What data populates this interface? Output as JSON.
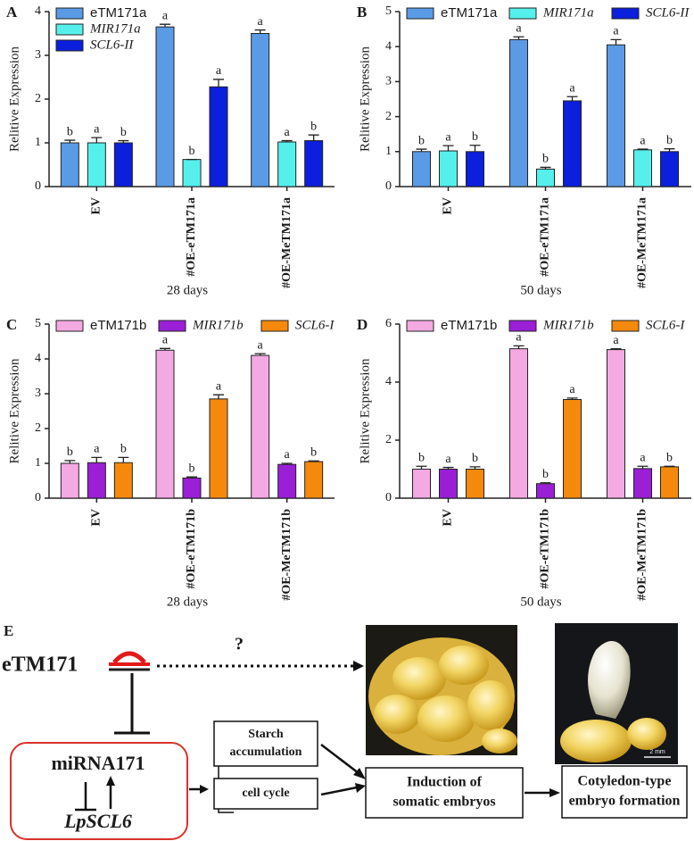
{
  "chart_data": [
    {
      "type": "bar",
      "panel": "A",
      "ylabel": "Relitive Expression",
      "xlabel": "28 days",
      "categories": [
        "EV",
        "#OE-eTM171a",
        "#OE-MeTM171a"
      ],
      "ylim": [
        0,
        4
      ],
      "yticks": [
        0,
        1,
        2,
        3,
        4
      ],
      "series": [
        {
          "name": "eTM171a",
          "color": "#5b9be6",
          "values": [
            1.0,
            3.65,
            3.5
          ],
          "errors": [
            0.06,
            0.06,
            0.08
          ],
          "letters": [
            "b",
            "a",
            "a"
          ]
        },
        {
          "name": "MIR171a",
          "color": "#55f0ec",
          "values": [
            1.0,
            0.62,
            1.02
          ],
          "errors": [
            0.12,
            0,
            0.03
          ],
          "letters": [
            "a",
            "b",
            "a"
          ]
        },
        {
          "name": "SCL6-II",
          "color": "#0b1fdc",
          "values": [
            1.0,
            2.28,
            1.05
          ],
          "errors": [
            0.05,
            0.17,
            0.13
          ],
          "letters": [
            "b",
            "a",
            "b"
          ]
        }
      ]
    },
    {
      "type": "bar",
      "panel": "B",
      "ylabel": "Relitive Expression",
      "xlabel": "50 days",
      "categories": [
        "EV",
        "#OE-eTM171a",
        "#OE-MeTM171a"
      ],
      "ylim": [
        0,
        5
      ],
      "yticks": [
        0,
        1,
        2,
        3,
        4,
        5
      ],
      "series": [
        {
          "name": "eTM171a",
          "color": "#5b9be6",
          "values": [
            1.0,
            4.2,
            4.05
          ],
          "errors": [
            0.07,
            0.08,
            0.15
          ],
          "letters": [
            "b",
            "a",
            "a"
          ]
        },
        {
          "name": "MIR171a",
          "color": "#55f0ec",
          "values": [
            1.02,
            0.5,
            1.05
          ],
          "errors": [
            0.15,
            0.05,
            0.02
          ],
          "letters": [
            "a",
            "b",
            "a"
          ]
        },
        {
          "name": "SCL6-II",
          "color": "#0b1fdc",
          "values": [
            1.0,
            2.45,
            1.0
          ],
          "errors": [
            0.18,
            0.12,
            0.08
          ],
          "letters": [
            "b",
            "a",
            "b"
          ]
        }
      ]
    },
    {
      "type": "bar",
      "panel": "C",
      "ylabel": "Relitive Expression",
      "xlabel": "28 days",
      "categories": [
        "EV",
        "#OE-eTM171b",
        "#OE-MeTM171b"
      ],
      "ylim": [
        0,
        5
      ],
      "yticks": [
        0,
        1,
        2,
        3,
        4,
        5
      ],
      "series": [
        {
          "name": "eTM171b",
          "color": "#f4a9e2",
          "values": [
            1.0,
            4.25,
            4.1
          ],
          "errors": [
            0.08,
            0.05,
            0.05
          ],
          "letters": [
            "b",
            "a",
            "a"
          ]
        },
        {
          "name": "MIR171b",
          "color": "#9a1fd6",
          "values": [
            1.02,
            0.58,
            0.97
          ],
          "errors": [
            0.15,
            0.03,
            0.03
          ],
          "letters": [
            "a",
            "b",
            "a"
          ]
        },
        {
          "name": "SCL6-I",
          "color": "#f5890c",
          "values": [
            1.02,
            2.85,
            1.05
          ],
          "errors": [
            0.15,
            0.12,
            0.02
          ],
          "letters": [
            "b",
            "a",
            "b"
          ]
        }
      ]
    },
    {
      "type": "bar",
      "panel": "D",
      "ylabel": "Relitive Expression",
      "xlabel": "50 days",
      "categories": [
        "EV",
        "#OE-eTM171b",
        "#OE-MeTM171b"
      ],
      "ylim": [
        0,
        6
      ],
      "yticks": [
        0,
        2,
        4,
        6
      ],
      "series": [
        {
          "name": "eTM171b",
          "color": "#f4a9e2",
          "values": [
            1.0,
            5.15,
            5.12
          ],
          "errors": [
            0.1,
            0.1,
            0.03
          ],
          "letters": [
            "b",
            "a",
            "a"
          ]
        },
        {
          "name": "MIR171b",
          "color": "#9a1fd6",
          "values": [
            1.0,
            0.5,
            1.02
          ],
          "errors": [
            0.06,
            0.03,
            0.08
          ],
          "letters": [
            "a",
            "b",
            "a"
          ]
        },
        {
          "name": "SCL6-I",
          "color": "#f5890c",
          "values": [
            1.0,
            3.4,
            1.08
          ],
          "errors": [
            0.08,
            0.05,
            0.02
          ],
          "letters": [
            "b",
            "a",
            "b"
          ]
        }
      ]
    }
  ],
  "diagram": {
    "panel": "E",
    "regulator": "eTM171",
    "unknown": "?",
    "mirna": "miRNA171",
    "target": "LpSCL6",
    "starch": [
      "Starch",
      "accumulation"
    ],
    "cell_cycle": "cell cycle",
    "induction": [
      "Induction of",
      "somatic embryos"
    ],
    "formation": [
      "Cotyledon-type",
      "embryo formation"
    ],
    "scale_bar": "2 mm"
  }
}
